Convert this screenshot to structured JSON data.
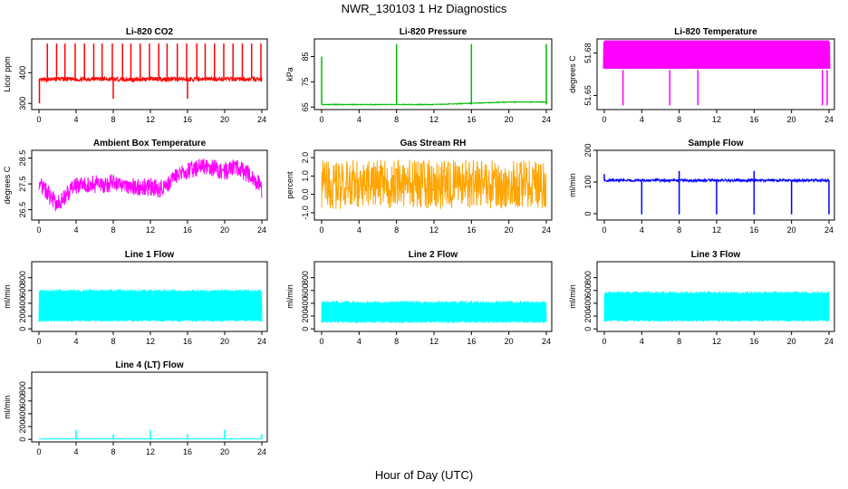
{
  "figure": {
    "title": "NWR_130103  1 Hz Diagnostics",
    "xlabel": "Hour of Day (UTC)"
  },
  "chart_data": [
    {
      "type": "line",
      "title": "Li-820 CO2",
      "ylabel": "Licor ppm",
      "color": "#ff0000",
      "xlim": [
        0,
        24
      ],
      "ylim": [
        280,
        510
      ],
      "xticks": [
        0,
        4,
        8,
        12,
        16,
        20,
        24
      ],
      "yticks": [
        300,
        400
      ],
      "series": [
        {
          "x": [
            0,
            2,
            4,
            6,
            8,
            10,
            12,
            14,
            16,
            18,
            20,
            22,
            24
          ],
          "values": [
            375,
            380,
            378,
            380,
            379,
            378,
            380,
            379,
            378,
            380,
            379,
            380,
            378
          ]
        }
      ]
    },
    {
      "type": "line",
      "title": "Li-820 Pressure",
      "ylabel": "kPa",
      "color": "#00bb00",
      "xlim": [
        0,
        24
      ],
      "ylim": [
        64,
        92
      ],
      "xticks": [
        0,
        4,
        8,
        12,
        16,
        20,
        24
      ],
      "yticks": [
        65,
        75,
        85
      ],
      "series": [
        {
          "x": [
            0,
            4,
            8,
            12,
            16,
            20,
            24
          ],
          "values": [
            66,
            66,
            66,
            66,
            66.5,
            67,
            67
          ]
        }
      ]
    },
    {
      "type": "line",
      "title": "Li-820 Temperature",
      "ylabel": "degrees C",
      "color": "#ff00ff",
      "xlim": [
        0,
        24
      ],
      "ylim": [
        51.64,
        51.69
      ],
      "xticks": [
        0,
        4,
        8,
        12,
        16,
        20,
        24
      ],
      "yticks": [
        51.65,
        51.68
      ],
      "series": [
        {
          "x": [
            0,
            12,
            24
          ],
          "values": [
            51.68,
            51.68,
            51.68
          ]
        }
      ]
    },
    {
      "type": "line",
      "title": "Ambient Box Temperature",
      "ylabel": "degrees C",
      "color": "#ff00ff",
      "xlim": [
        0,
        24
      ],
      "ylim": [
        26.1,
        28.8
      ],
      "xticks": [
        0,
        4,
        8,
        12,
        16,
        20,
        24
      ],
      "yticks": [
        26.5,
        27.5,
        28.5
      ],
      "series": [
        {
          "x": [
            0,
            1,
            2,
            3,
            4,
            5,
            6,
            7,
            8,
            9,
            10,
            11,
            12,
            13,
            14,
            15,
            16,
            17,
            18,
            19,
            20,
            21,
            22,
            23,
            24
          ],
          "values": [
            27.6,
            27.1,
            26.7,
            27.1,
            27.4,
            27.5,
            27.5,
            27.4,
            27.6,
            27.5,
            27.4,
            27.4,
            27.4,
            27.3,
            27.5,
            27.8,
            28.0,
            28.1,
            28.2,
            28.1,
            28.0,
            28.1,
            28.0,
            27.8,
            27.3
          ]
        }
      ]
    },
    {
      "type": "line",
      "title": "Gas Stream RH",
      "ylabel": "percent",
      "color": "#ffa500",
      "xlim": [
        0,
        24
      ],
      "ylim": [
        -1.4,
        2.4
      ],
      "xticks": [
        0,
        4,
        8,
        12,
        16,
        20,
        24
      ],
      "yticks": [
        -1.0,
        0.0,
        1.0,
        2.0
      ],
      "series": [
        {
          "x": [
            0,
            6,
            12,
            18,
            24
          ],
          "values": [
            0.5,
            0.5,
            0.5,
            0.5,
            0.5
          ]
        }
      ]
    },
    {
      "type": "line",
      "title": "Sample Flow",
      "ylabel": "ml/min",
      "color": "#0000ff",
      "xlim": [
        0,
        24
      ],
      "ylim": [
        -20,
        200
      ],
      "xticks": [
        0,
        4,
        8,
        12,
        16,
        20,
        24
      ],
      "yticks": [
        0,
        100,
        200
      ],
      "series": [
        {
          "x": [
            0,
            4,
            8,
            12,
            16,
            20,
            24
          ],
          "values": [
            105,
            105,
            105,
            105,
            105,
            105,
            105
          ]
        }
      ]
    },
    {
      "type": "line",
      "title": "Line 1 Flow",
      "ylabel": "ml/min",
      "color": "#00ffff",
      "xlim": [
        0,
        24
      ],
      "ylim": [
        -40,
        1050
      ],
      "xticks": [
        0,
        4,
        8,
        12,
        16,
        20,
        24
      ],
      "yticks": [
        0,
        200,
        400,
        600,
        800
      ],
      "series": [
        {
          "x": [
            0,
            4,
            8,
            12,
            16,
            20,
            24
          ],
          "values": [
            360,
            360,
            360,
            360,
            360,
            360,
            360
          ]
        }
      ]
    },
    {
      "type": "line",
      "title": "Line 2 Flow",
      "ylabel": "ml/min",
      "color": "#00ffff",
      "xlim": [
        0,
        24
      ],
      "ylim": [
        -40,
        1050
      ],
      "xticks": [
        0,
        4,
        8,
        12,
        16,
        20,
        24
      ],
      "yticks": [
        0,
        200,
        400,
        600,
        800
      ],
      "series": [
        {
          "x": [
            0,
            4,
            8,
            12,
            16,
            20,
            24
          ],
          "values": [
            260,
            260,
            260,
            260,
            260,
            260,
            260
          ]
        }
      ]
    },
    {
      "type": "line",
      "title": "Line 3 Flow",
      "ylabel": "ml/min",
      "color": "#00ffff",
      "xlim": [
        0,
        24
      ],
      "ylim": [
        -40,
        1050
      ],
      "xticks": [
        0,
        4,
        8,
        12,
        16,
        20,
        24
      ],
      "yticks": [
        0,
        200,
        400,
        600,
        800
      ],
      "series": [
        {
          "x": [
            0,
            4,
            8,
            12,
            16,
            20,
            24
          ],
          "values": [
            350,
            350,
            350,
            350,
            350,
            350,
            350
          ]
        }
      ]
    },
    {
      "type": "line",
      "title": "Line 4 (LT) Flow",
      "ylabel": "ml/min",
      "color": "#00ffff",
      "xlim": [
        0,
        24
      ],
      "ylim": [
        -40,
        1050
      ],
      "xticks": [
        0,
        4,
        8,
        12,
        16,
        20,
        24
      ],
      "yticks": [
        0,
        200,
        400,
        600,
        800
      ],
      "series": [
        {
          "x": [
            0,
            4,
            8,
            12,
            16,
            20,
            24
          ],
          "values": [
            5,
            5,
            5,
            5,
            5,
            5,
            5
          ]
        }
      ]
    }
  ]
}
